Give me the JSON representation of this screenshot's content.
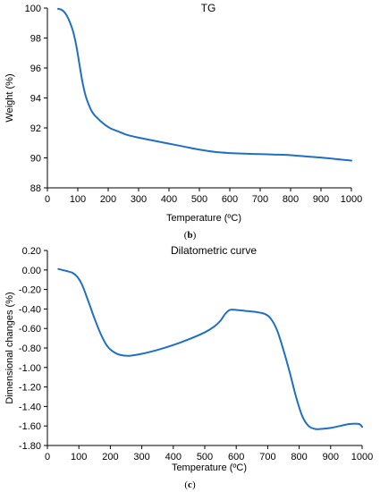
{
  "captions": {
    "b_open": "(",
    "b_letter": "b",
    "b_close": ")",
    "c_open": "(",
    "c_letter": "c",
    "c_close": ")"
  },
  "chart_data": [
    {
      "type": "line",
      "title": "TG",
      "xlabel": "Temperature (ºC)",
      "ylabel": "Weight (%)",
      "xlim": [
        0,
        1000
      ],
      "ylim": [
        88,
        100
      ],
      "xticks": [
        0,
        100,
        200,
        300,
        400,
        500,
        600,
        700,
        800,
        900,
        1000
      ],
      "yticks": [
        88,
        90,
        92,
        94,
        96,
        98,
        100
      ],
      "ytick_format": "int",
      "grid": false,
      "color": "#1f6fc5",
      "series": [
        {
          "x": [
            35,
            45,
            55,
            65,
            75,
            85,
            95,
            105,
            115,
            125,
            135,
            145,
            155,
            165,
            175,
            190,
            210,
            235,
            260,
            300,
            350,
            400,
            450,
            500,
            550,
            600,
            650,
            700,
            750,
            800,
            850,
            900,
            950,
            1000
          ],
          "y": [
            99.95,
            99.9,
            99.75,
            99.45,
            99.0,
            98.4,
            97.5,
            96.3,
            95.1,
            94.2,
            93.6,
            93.15,
            92.85,
            92.65,
            92.45,
            92.2,
            91.95,
            91.75,
            91.55,
            91.35,
            91.15,
            90.95,
            90.75,
            90.55,
            90.4,
            90.32,
            90.28,
            90.25,
            90.22,
            90.18,
            90.1,
            90.02,
            89.92,
            89.82
          ]
        }
      ]
    },
    {
      "type": "line",
      "title": "Dilatometric curve",
      "xlabel": "Temperature (ºC)",
      "ylabel": "Dimensional changes (%)",
      "xlim": [
        0,
        1000
      ],
      "ylim": [
        -1.8,
        0.2
      ],
      "xticks": [
        0,
        100,
        200,
        300,
        400,
        500,
        600,
        700,
        800,
        900,
        1000
      ],
      "yticks": [
        -1.8,
        -1.6,
        -1.4,
        -1.2,
        -1.0,
        -0.8,
        -0.6,
        -0.4,
        -0.2,
        0.0,
        0.2
      ],
      "ytick_format": "2dp",
      "grid": false,
      "color": "#1f6fc5",
      "series": [
        {
          "x": [
            35,
            60,
            80,
            95,
            110,
            130,
            150,
            170,
            190,
            210,
            230,
            260,
            300,
            350,
            400,
            450,
            500,
            530,
            550,
            565,
            580,
            600,
            630,
            660,
            690,
            710,
            730,
            750,
            770,
            790,
            810,
            830,
            850,
            870,
            900,
            930,
            960,
            990,
            1000
          ],
          "y": [
            0.01,
            -0.01,
            -0.03,
            -0.07,
            -0.15,
            -0.32,
            -0.5,
            -0.66,
            -0.78,
            -0.84,
            -0.87,
            -0.88,
            -0.86,
            -0.82,
            -0.77,
            -0.71,
            -0.64,
            -0.58,
            -0.52,
            -0.45,
            -0.41,
            -0.41,
            -0.42,
            -0.43,
            -0.45,
            -0.5,
            -0.62,
            -0.82,
            -1.05,
            -1.3,
            -1.5,
            -1.6,
            -1.63,
            -1.63,
            -1.62,
            -1.6,
            -1.58,
            -1.58,
            -1.61
          ]
        }
      ]
    }
  ]
}
